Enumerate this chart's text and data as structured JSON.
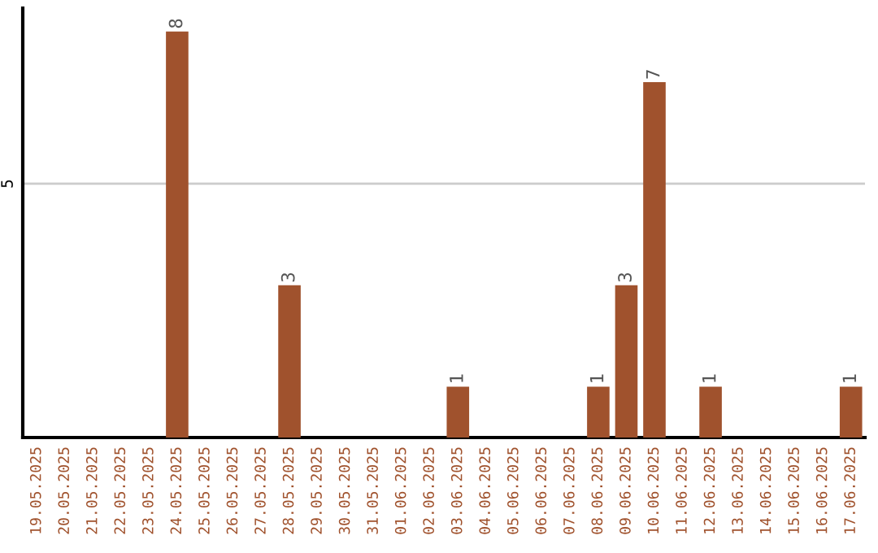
{
  "chart_data": {
    "type": "bar",
    "categories": [
      "19.05.2025",
      "20.05.2025",
      "21.05.2025",
      "22.05.2025",
      "23.05.2025",
      "24.05.2025",
      "25.05.2025",
      "26.05.2025",
      "27.05.2025",
      "28.05.2025",
      "29.05.2025",
      "30.05.2025",
      "31.05.2025",
      "01.06.2025",
      "02.06.2025",
      "03.06.2025",
      "04.06.2025",
      "05.06.2025",
      "06.06.2025",
      "07.06.2025",
      "08.06.2025",
      "09.06.2025",
      "10.06.2025",
      "11.06.2025",
      "12.06.2025",
      "13.06.2025",
      "14.06.2025",
      "15.06.2025",
      "16.06.2025",
      "17.06.2025"
    ],
    "values": [
      0,
      0,
      0,
      0,
      0,
      8,
      0,
      0,
      0,
      3,
      0,
      0,
      0,
      0,
      0,
      1,
      0,
      0,
      0,
      0,
      1,
      3,
      7,
      0,
      1,
      0,
      0,
      0,
      0,
      1
    ],
    "value_labels": [
      null,
      null,
      null,
      null,
      null,
      "8",
      null,
      null,
      null,
      "3",
      null,
      null,
      null,
      null,
      null,
      "1",
      null,
      null,
      null,
      null,
      "1",
      "3",
      "7",
      null,
      "1",
      null,
      null,
      null,
      null,
      "1"
    ],
    "color": "#a0522d",
    "ylim": [
      0,
      8.46
    ],
    "yticks": [
      5
    ],
    "grid": "y"
  }
}
